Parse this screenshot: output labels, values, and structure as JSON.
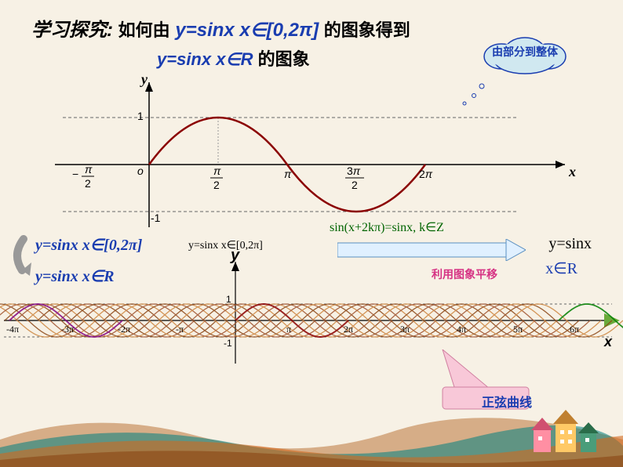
{
  "title": "学习探究:",
  "question_prefix": "如何由",
  "question_math1": "y=sinx x∈[0,2π]",
  "question_suffix": "的图象得到",
  "question_math2": "y=sinx x∈R",
  "question_suffix2": "的图象",
  "cloud_text": "由部分到整体",
  "chart1": {
    "type": "line",
    "curve_color": "#8b0000",
    "axis_color": "#000000",
    "dash_color": "#666666",
    "bg": "#f7f1e5",
    "x_ticks": [
      "−π/2",
      "o",
      "π/2",
      "π",
      "3π/2",
      "2π"
    ],
    "y_ticks": [
      "-1",
      "1"
    ],
    "x_label": "x",
    "y_label": "y",
    "xlim": [
      -1.8,
      7.5
    ],
    "ylim": [
      -1.3,
      1.3
    ],
    "line_width": 2.5
  },
  "period_formula": "sin(x+2kπ)=sinx,  k∈Z",
  "left_formula1": "y=sinx   x∈[0,2π]",
  "left_formula2": "y=sinx   x∈R",
  "center_formula": "y=sinx   x∈[0,2π]",
  "right_formula1": "y=sinx",
  "right_formula2": "x∈R",
  "translate_label": "利用图象平移",
  "y2_label": "y",
  "chart2": {
    "type": "line-overlap",
    "curve_colors": [
      "#8b4513",
      "#a0522d",
      "#cd853f",
      "#8b0000",
      "#800080",
      "#008000"
    ],
    "axis_color": "#000000",
    "x_ticks": [
      "-4π",
      "-3π",
      "-2π",
      "-π",
      "",
      "π",
      "2π",
      "3π",
      "4π",
      "5π",
      "6π"
    ],
    "y_ticks": [
      "-1",
      "1"
    ],
    "x_label": "x",
    "n_copies": 30,
    "xlim": [
      -13,
      20
    ],
    "ylim": [
      -1.2,
      1.2
    ]
  },
  "callout": "正弦曲线",
  "decoration": {
    "wave_colors": [
      "#b08040",
      "#008080",
      "#d2691e",
      "#8b4513"
    ],
    "house_colors": [
      "#ff8fa3",
      "#4a9d7a",
      "#ffc966"
    ]
  }
}
